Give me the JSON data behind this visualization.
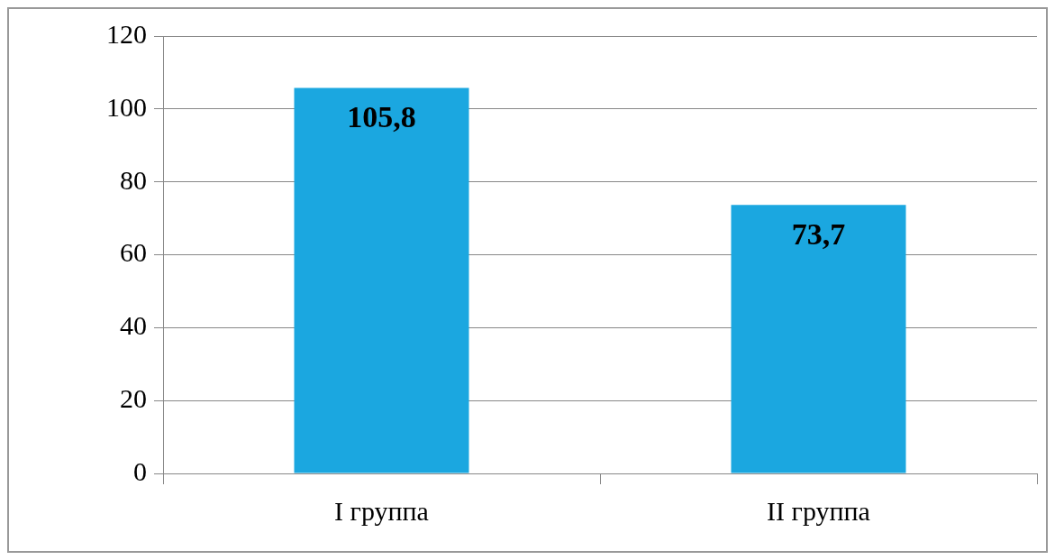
{
  "chart_data": {
    "type": "bar",
    "categories": [
      "I группа",
      "II группа"
    ],
    "values": [
      105.8,
      73.7
    ],
    "color": "#1ba7e0",
    "value_labels": [
      "105,8",
      "73,7"
    ],
    "ylim": [
      0,
      120
    ],
    "yticks": [
      0,
      20,
      40,
      60,
      80,
      100,
      120
    ],
    "grid": "y"
  }
}
